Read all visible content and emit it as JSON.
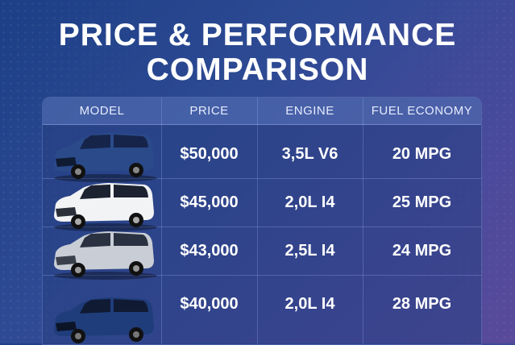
{
  "title": {
    "line1": "PRICE & PERFORMANCE",
    "line2": "COMPARISON"
  },
  "table": {
    "headers": [
      "MODEL",
      "PRICE",
      "ENGINE",
      "FUEL ECONOMY"
    ],
    "rows": [
      {
        "model_image": "dark-blue-minivan",
        "price": "$50,000",
        "engine": "3,5L V6",
        "fuel": "20 MPG"
      },
      {
        "model_image": "white-minivan",
        "price": "$45,000",
        "engine": "2,0L I4",
        "fuel": "25 MPG"
      },
      {
        "model_image": "silver-minivan",
        "price": "$43,000",
        "engine": "2,5L I4",
        "fuel": "24 MPG"
      },
      {
        "model_image": "navy-minivan",
        "price": "$40,000",
        "engine": "2,0L I4",
        "fuel": "28 MPG"
      }
    ]
  },
  "colors": {
    "dark_blue": "#2a4a8a",
    "white": "#f2f3f5",
    "silver": "#c9ced6",
    "navy": "#1f3d7a"
  }
}
